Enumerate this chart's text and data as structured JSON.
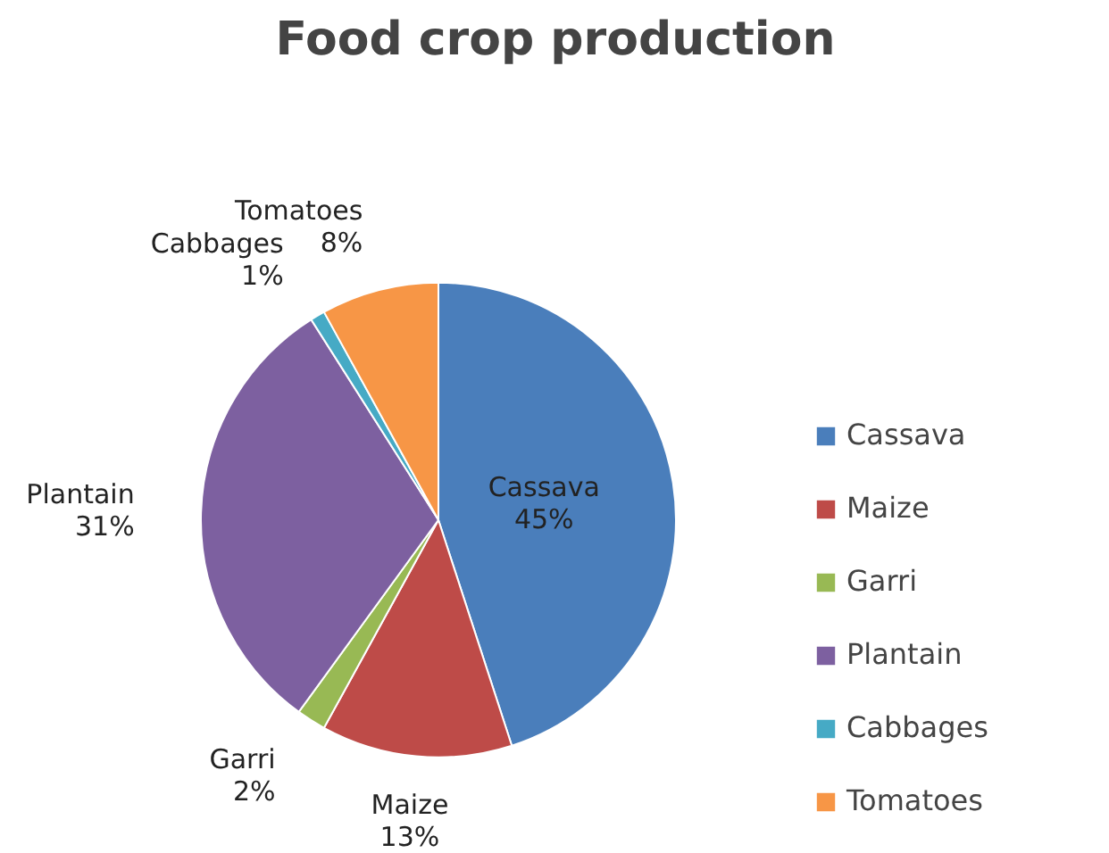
{
  "chart_data": {
    "type": "pie",
    "title": "Food crop production",
    "categories": [
      "Cassava",
      "Maize",
      "Garri",
      "Plantain",
      "Cabbages",
      "Tomatoes"
    ],
    "values": [
      45,
      13,
      2,
      31,
      1,
      8
    ],
    "value_labels": [
      "45%",
      "13%",
      "2%",
      "31%",
      "1%",
      "8%"
    ],
    "colors": [
      "#4a7ebb",
      "#be4b48",
      "#98b954",
      "#7d60a0",
      "#46aac5",
      "#f79646"
    ],
    "legend": "right"
  }
}
